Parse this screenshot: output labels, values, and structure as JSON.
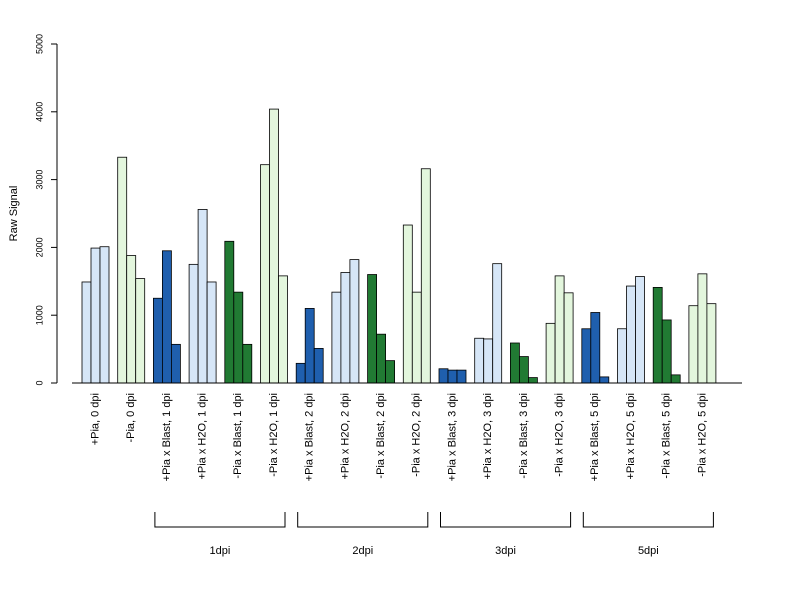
{
  "chart_data": {
    "type": "bar",
    "ylabel": "Raw Signal",
    "xlabel": "",
    "title": "",
    "ylim": [
      0,
      5000
    ],
    "yticks": [
      0,
      1000,
      2000,
      3000,
      4000,
      5000
    ],
    "grid": false,
    "colors": {
      "light_blue": "#d6e6f7",
      "blue": "#1f5fae",
      "light_green": "#e3f6dd",
      "green": "#217a33"
    },
    "categories": [
      {
        "label": "+Pia, 0 dpi",
        "color": "light_blue",
        "values": [
          1490,
          1990,
          2010
        ]
      },
      {
        "label": "-Pia, 0 dpi",
        "color": "light_green",
        "values": [
          3330,
          1880,
          1540
        ]
      },
      {
        "label": "+Pia x Blast, 1 dpi",
        "color": "blue",
        "values": [
          1250,
          1950,
          570
        ]
      },
      {
        "label": "+Pia x H2O, 1 dpi",
        "color": "light_blue",
        "values": [
          1750,
          2560,
          1490
        ]
      },
      {
        "label": "-Pia x Blast, 1 dpi",
        "color": "green",
        "values": [
          2090,
          1340,
          570
        ]
      },
      {
        "label": "-Pia x H2O, 1 dpi",
        "color": "light_green",
        "values": [
          3220,
          4040,
          1580
        ]
      },
      {
        "label": "+Pia x Blast, 2 dpi",
        "color": "blue",
        "values": [
          290,
          1100,
          510
        ]
      },
      {
        "label": "+Pia x H2O, 2 dpi",
        "color": "light_blue",
        "values": [
          1340,
          1630,
          1820
        ]
      },
      {
        "label": "-Pia x Blast, 2 dpi",
        "color": "green",
        "values": [
          1600,
          720,
          330
        ]
      },
      {
        "label": "-Pia x H2O, 2 dpi",
        "color": "light_green",
        "values": [
          2330,
          1340,
          3160
        ]
      },
      {
        "label": "+Pia x Blast, 3 dpi",
        "color": "blue",
        "values": [
          210,
          190,
          190
        ]
      },
      {
        "label": "+Pia x H2O, 3 dpi",
        "color": "light_blue",
        "values": [
          660,
          650,
          1760
        ]
      },
      {
        "label": "-Pia x Blast, 3 dpi",
        "color": "green",
        "values": [
          590,
          390,
          80
        ]
      },
      {
        "label": "-Pia x H2O, 3 dpi",
        "color": "light_green",
        "values": [
          880,
          1580,
          1330
        ]
      },
      {
        "label": "+Pia x Blast, 5 dpi",
        "color": "blue",
        "values": [
          800,
          1040,
          90
        ]
      },
      {
        "label": "+Pia x H2O, 5 dpi",
        "color": "light_blue",
        "values": [
          800,
          1430,
          1570
        ]
      },
      {
        "label": "-Pia x Blast, 5 dpi",
        "color": "green",
        "values": [
          1410,
          930,
          120
        ]
      },
      {
        "label": "-Pia x H2O, 5 dpi",
        "color": "light_green",
        "values": [
          1140,
          1610,
          1170
        ]
      }
    ],
    "groups": [
      {
        "label": "1dpi",
        "first_category": 2,
        "last_category": 5
      },
      {
        "label": "2dpi",
        "first_category": 6,
        "last_category": 9
      },
      {
        "label": "3dpi",
        "first_category": 10,
        "last_category": 13
      },
      {
        "label": "5dpi",
        "first_category": 14,
        "last_category": 17
      }
    ]
  }
}
